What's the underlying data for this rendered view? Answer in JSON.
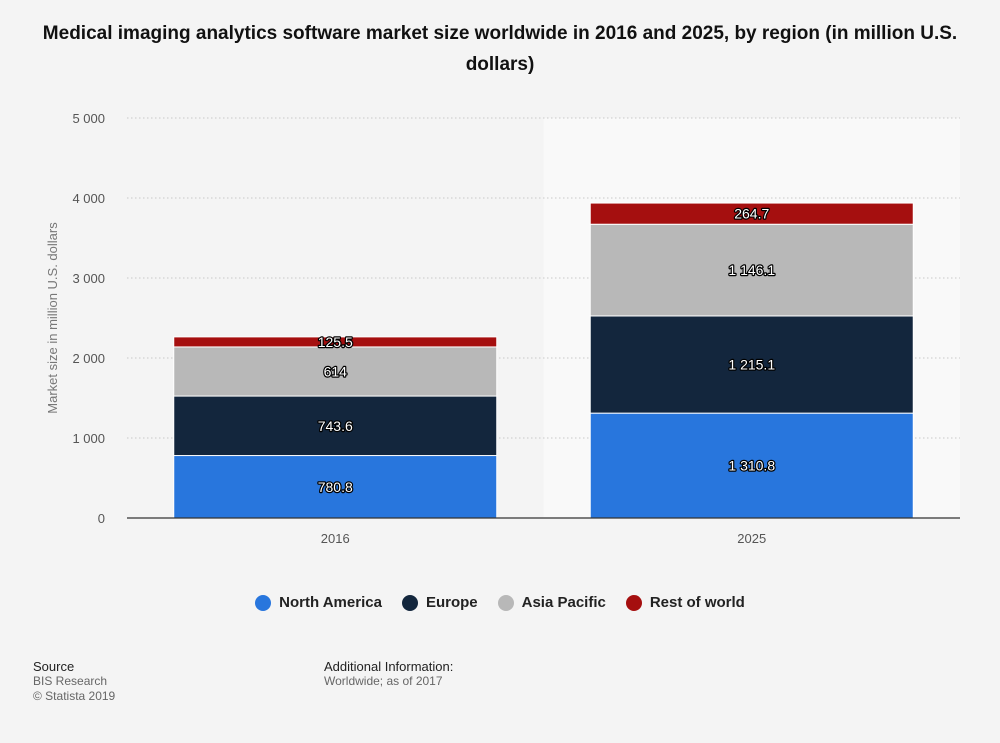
{
  "chart_data": {
    "type": "bar",
    "stacked": true,
    "title": "Medical imaging analytics software market size worldwide in 2016 and 2025, by region (in million U.S. dollars)",
    "xlabel": "",
    "ylabel": "Market size in million U.S. dollars",
    "categories": [
      "2016",
      "2025"
    ],
    "ylim": [
      0,
      5000
    ],
    "yticks": [
      0,
      1000,
      2000,
      3000,
      4000,
      5000
    ],
    "ytick_labels": [
      "0",
      "1 000",
      "2 000",
      "3 000",
      "4 000",
      "5 000"
    ],
    "grid": true,
    "legend_position": "bottom",
    "series": [
      {
        "name": "North America",
        "color": "#2876dd",
        "values": [
          780.8,
          1310.8
        ],
        "labels": [
          "780.8",
          "1 310.8"
        ]
      },
      {
        "name": "Europe",
        "color": "#13263d",
        "values": [
          743.6,
          1215.1
        ],
        "labels": [
          "743.6",
          "1 215.1"
        ]
      },
      {
        "name": "Asia Pacific",
        "color": "#b8b8b8",
        "values": [
          614,
          1146.1
        ],
        "labels": [
          "614",
          "1 146.1"
        ]
      },
      {
        "name": "Rest of world",
        "color": "#a50f0f",
        "values": [
          125.5,
          264.7
        ],
        "labels": [
          "125.5",
          "264.7"
        ]
      }
    ]
  },
  "footer": {
    "source_heading": "Source",
    "source_lines": [
      "BIS Research",
      "© Statista 2019"
    ],
    "info_heading": "Additional Information:",
    "info_text": "Worldwide; as of 2017"
  }
}
